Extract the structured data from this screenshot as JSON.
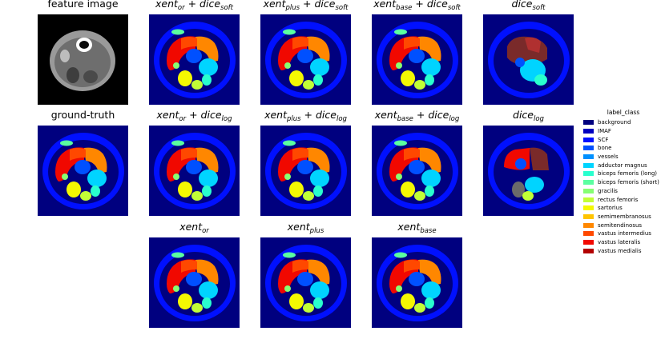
{
  "panels": [
    {
      "id": "feature",
      "title_plain": "feature image",
      "kind": "feature"
    },
    {
      "id": "xent_or_dice_soft",
      "t1": "xent",
      "s1": "or",
      "t2": "dice",
      "s2": "soft",
      "kind": "seg"
    },
    {
      "id": "xent_plus_dice_soft",
      "t1": "xent",
      "s1": "plus",
      "t2": "dice",
      "s2": "soft",
      "kind": "seg"
    },
    {
      "id": "xent_base_dice_soft",
      "t1": "xent",
      "s1": "base",
      "t2": "dice",
      "s2": "soft",
      "kind": "seg"
    },
    {
      "id": "dice_soft",
      "t1": "dice",
      "s1": "soft",
      "kind": "seg-bad"
    },
    {
      "id": "ground_truth",
      "title_plain": "ground-truth",
      "kind": "seg"
    },
    {
      "id": "xent_or_dice_log",
      "t1": "xent",
      "s1": "or",
      "t2": "dice",
      "s2": "log",
      "kind": "seg"
    },
    {
      "id": "xent_plus_dice_log",
      "t1": "xent",
      "s1": "plus",
      "t2": "dice",
      "s2": "log",
      "kind": "seg"
    },
    {
      "id": "xent_base_dice_log",
      "t1": "xent",
      "s1": "base",
      "t2": "dice",
      "s2": "log",
      "kind": "seg"
    },
    {
      "id": "dice_log",
      "t1": "dice",
      "s1": "log",
      "kind": "seg-bad2"
    },
    {
      "id": "xent_or",
      "t1": "xent",
      "s1": "or",
      "kind": "seg"
    },
    {
      "id": "xent_plus",
      "t1": "xent",
      "s1": "plus",
      "kind": "seg"
    },
    {
      "id": "xent_base",
      "t1": "xent",
      "s1": "base",
      "kind": "seg"
    }
  ],
  "legend": {
    "title": "label_class",
    "items": [
      {
        "label": "background",
        "color": "#00007f"
      },
      {
        "label": "IMAF",
        "color": "#0000bf"
      },
      {
        "label": "SCF",
        "color": "#0010ff"
      },
      {
        "label": "bone",
        "color": "#0050ff"
      },
      {
        "label": "vessels",
        "color": "#0090ff"
      },
      {
        "label": "adductor magnus",
        "color": "#00d4ff"
      },
      {
        "label": "biceps femoris (long)",
        "color": "#29ffce"
      },
      {
        "label": "biceps femoris (short)",
        "color": "#5affa0"
      },
      {
        "label": "gracilis",
        "color": "#86ff73"
      },
      {
        "label": "rectus femoris",
        "color": "#c1ff36"
      },
      {
        "label": "sartorius",
        "color": "#f4f802"
      },
      {
        "label": "semimembranosus",
        "color": "#ffc400"
      },
      {
        "label": "semitendinosus",
        "color": "#ff8700"
      },
      {
        "label": "vastus intermedius",
        "color": "#ff4800"
      },
      {
        "label": "vastus lateralis",
        "color": "#f10800"
      },
      {
        "label": "vastus medialis",
        "color": "#b20000"
      }
    ]
  }
}
